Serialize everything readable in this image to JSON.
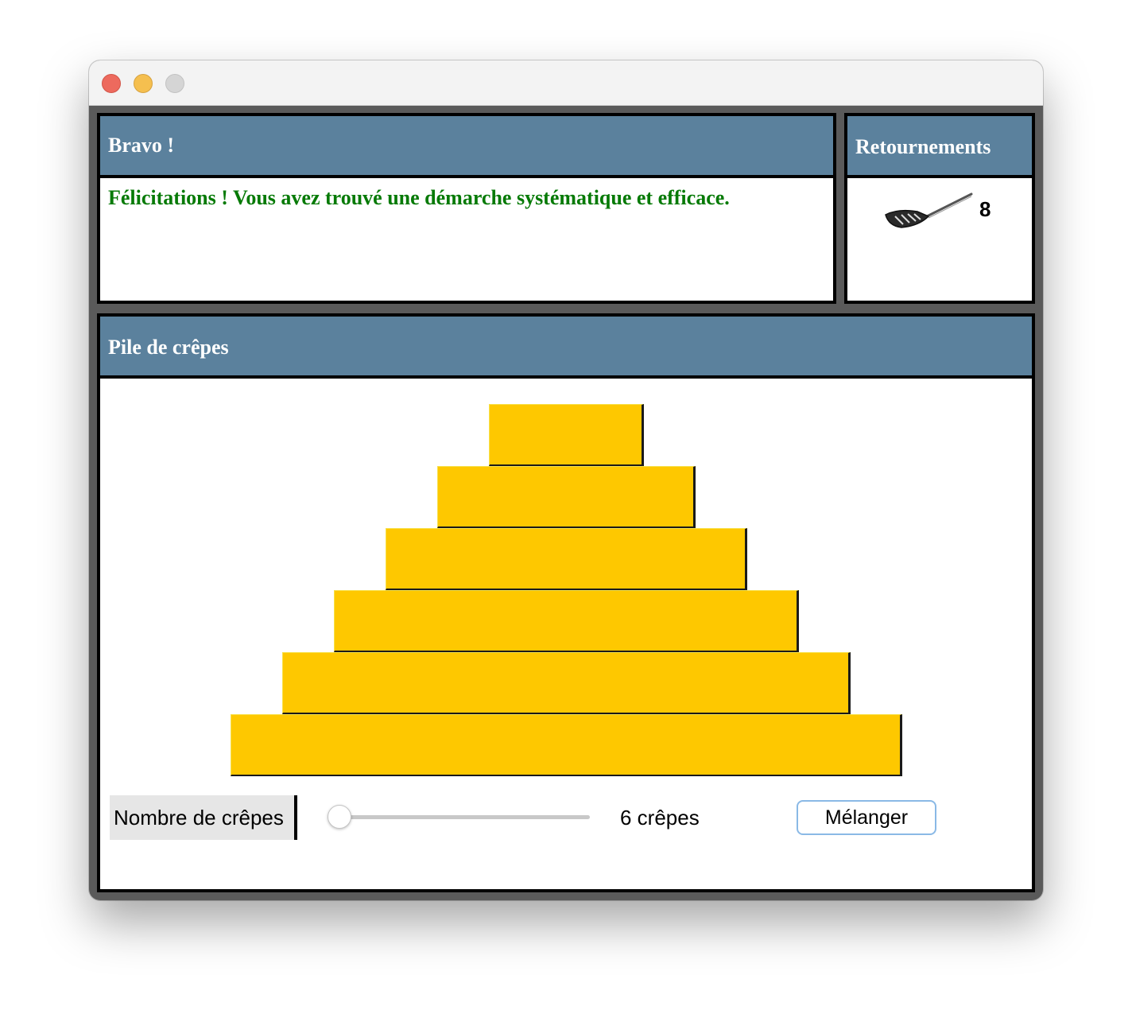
{
  "window": {
    "controls": [
      "close",
      "minimize",
      "zoom"
    ]
  },
  "status_panel": {
    "title": "Bravo !",
    "message": "Félicitations ! Vous avez trouvé une démarche systématique et efficace.",
    "message_color": "#067a06"
  },
  "flips_panel": {
    "title": "Retournements",
    "icon": "spatula-icon",
    "count": "8"
  },
  "stack_panel": {
    "title": "Pile de crêpes",
    "crepe_color": "#fec800",
    "crepe_sizes_top_to_bottom": [
      1,
      2,
      3,
      4,
      5,
      6
    ]
  },
  "controls": {
    "count_label": "Nombre de crêpes",
    "slider_position_fraction": 0,
    "count_value": "6 crêpes",
    "shuffle_button": "Mélanger"
  },
  "colors": {
    "header_bg": "#5b819d",
    "frame": "#5a5a5a",
    "button_border": "#8ab9e6"
  }
}
